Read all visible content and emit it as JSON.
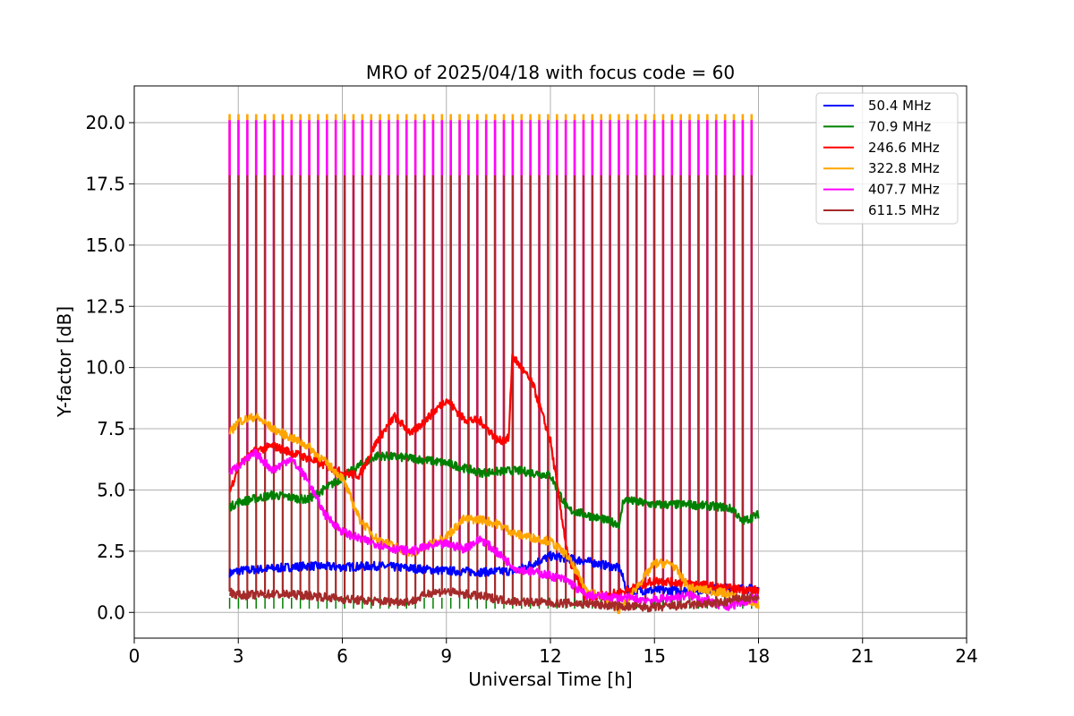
{
  "chart_data": {
    "type": "line",
    "title": "MRO of 2025/04/18 with focus code = 60",
    "xlabel": "Universal Time [h]",
    "ylabel": "Y-factor [dB]",
    "xlim": [
      0,
      24
    ],
    "ylim": [
      -1.05,
      21.5
    ],
    "xticks": [
      0,
      3,
      6,
      9,
      12,
      15,
      18,
      21,
      24
    ],
    "xtick_labels": [
      "0",
      "3",
      "6",
      "9",
      "12",
      "15",
      "18",
      "21",
      "24"
    ],
    "yticks": [
      0,
      2.5,
      5,
      7.5,
      10,
      12.5,
      15,
      17.5,
      20
    ],
    "ytick_labels": [
      "0.0",
      "2.5",
      "5.0",
      "7.5",
      "10.0",
      "12.5",
      "15.0",
      "17.5",
      "20.0"
    ],
    "grid": true,
    "legend_position": "top-right",
    "calibration_spikes": {
      "start": 2.75,
      "end": 17.8,
      "count": 60
    },
    "series": [
      {
        "name": " 50.4 MHz",
        "color": "#0000ff",
        "spike_peak": 0,
        "x": [
          2.75,
          3,
          4,
          5,
          6,
          7,
          8,
          9,
          10,
          11,
          12,
          13,
          14,
          14.2,
          15,
          16,
          17,
          18
        ],
        "y": [
          1.6,
          1.7,
          1.8,
          1.9,
          1.85,
          1.9,
          1.8,
          1.7,
          1.65,
          1.7,
          2.3,
          2.1,
          1.8,
          0.9,
          0.9,
          0.9,
          1.0,
          0.95
        ]
      },
      {
        "name": " 70.9 MHz",
        "color": "#008000",
        "spike_peak": 0,
        "x": [
          2.75,
          3,
          4,
          5,
          6,
          6.5,
          7,
          8,
          9,
          10,
          11,
          12,
          12.5,
          13,
          14,
          14.1,
          15,
          16,
          17,
          17.3,
          17.5,
          18
        ],
        "y": [
          4.3,
          4.5,
          4.8,
          4.6,
          5.5,
          6.0,
          6.4,
          6.3,
          6.1,
          5.7,
          5.8,
          5.6,
          4.2,
          4.0,
          3.6,
          4.6,
          4.4,
          4.4,
          4.3,
          4.2,
          3.7,
          4.0
        ]
      },
      {
        "name": "246.6 MHz",
        "color": "#ff0000",
        "spike_peak": 0,
        "x": [
          2.75,
          3,
          3.5,
          4,
          5,
          6,
          6.5,
          7,
          7.5,
          8,
          8.5,
          9,
          9.5,
          10,
          10.5,
          10.8,
          10.9,
          11.5,
          12,
          12.5,
          13,
          14,
          15,
          16,
          17,
          18
        ],
        "y": [
          4.9,
          6.0,
          6.6,
          6.8,
          6.3,
          5.7,
          5.6,
          7.0,
          8.0,
          7.3,
          8.0,
          8.7,
          7.9,
          7.8,
          7.0,
          7.1,
          10.5,
          9.3,
          7.0,
          2.3,
          0.6,
          0.8,
          1.3,
          1.2,
          1.0,
          0.9
        ]
      },
      {
        "name": "322.8 MHz",
        "color": "#ffa500",
        "spike_peak": 20.35,
        "x": [
          2.75,
          3,
          3.5,
          4,
          5,
          6,
          6.5,
          7,
          8,
          9,
          9.5,
          10,
          10.5,
          11,
          12,
          12.5,
          13,
          13.5,
          14,
          15,
          15.5,
          16,
          17,
          18
        ],
        "y": [
          7.3,
          7.8,
          8.0,
          7.5,
          6.8,
          5.5,
          3.8,
          3.0,
          2.4,
          3.1,
          3.8,
          3.8,
          3.6,
          3.2,
          2.9,
          2.3,
          1.0,
          0.6,
          0.1,
          2.0,
          2.0,
          1.0,
          0.8,
          0.3
        ]
      },
      {
        "name": "407.7 MHz",
        "color": "#ff00ff",
        "spike_peak": 20.1,
        "x": [
          2.75,
          3,
          3.5,
          4,
          4.5,
          5,
          5.5,
          6,
          6.5,
          7,
          7.5,
          8,
          8.5,
          9,
          9.5,
          10,
          10.5,
          11,
          12,
          12.5,
          13,
          14,
          15,
          16,
          16.5,
          17,
          18
        ],
        "y": [
          5.7,
          6.0,
          6.5,
          5.8,
          6.3,
          5.4,
          4.0,
          3.3,
          3.0,
          2.8,
          2.6,
          2.5,
          2.7,
          2.8,
          2.6,
          3.0,
          2.4,
          1.8,
          1.5,
          1.3,
          0.7,
          0.6,
          0.5,
          0.7,
          0.5,
          0.2,
          0.6
        ]
      },
      {
        "name": "611.5 MHz",
        "color": "#a52a2a",
        "spike_peak": 17.85,
        "x": [
          2.75,
          3,
          4,
          5,
          6,
          7,
          8,
          8.5,
          9,
          10,
          11,
          12,
          13,
          14,
          15,
          16,
          17,
          17.5,
          18
        ],
        "y": [
          0.85,
          0.7,
          0.75,
          0.7,
          0.55,
          0.45,
          0.45,
          0.8,
          0.85,
          0.65,
          0.45,
          0.4,
          0.35,
          0.25,
          0.2,
          0.3,
          0.4,
          0.6,
          0.55
        ]
      }
    ]
  }
}
